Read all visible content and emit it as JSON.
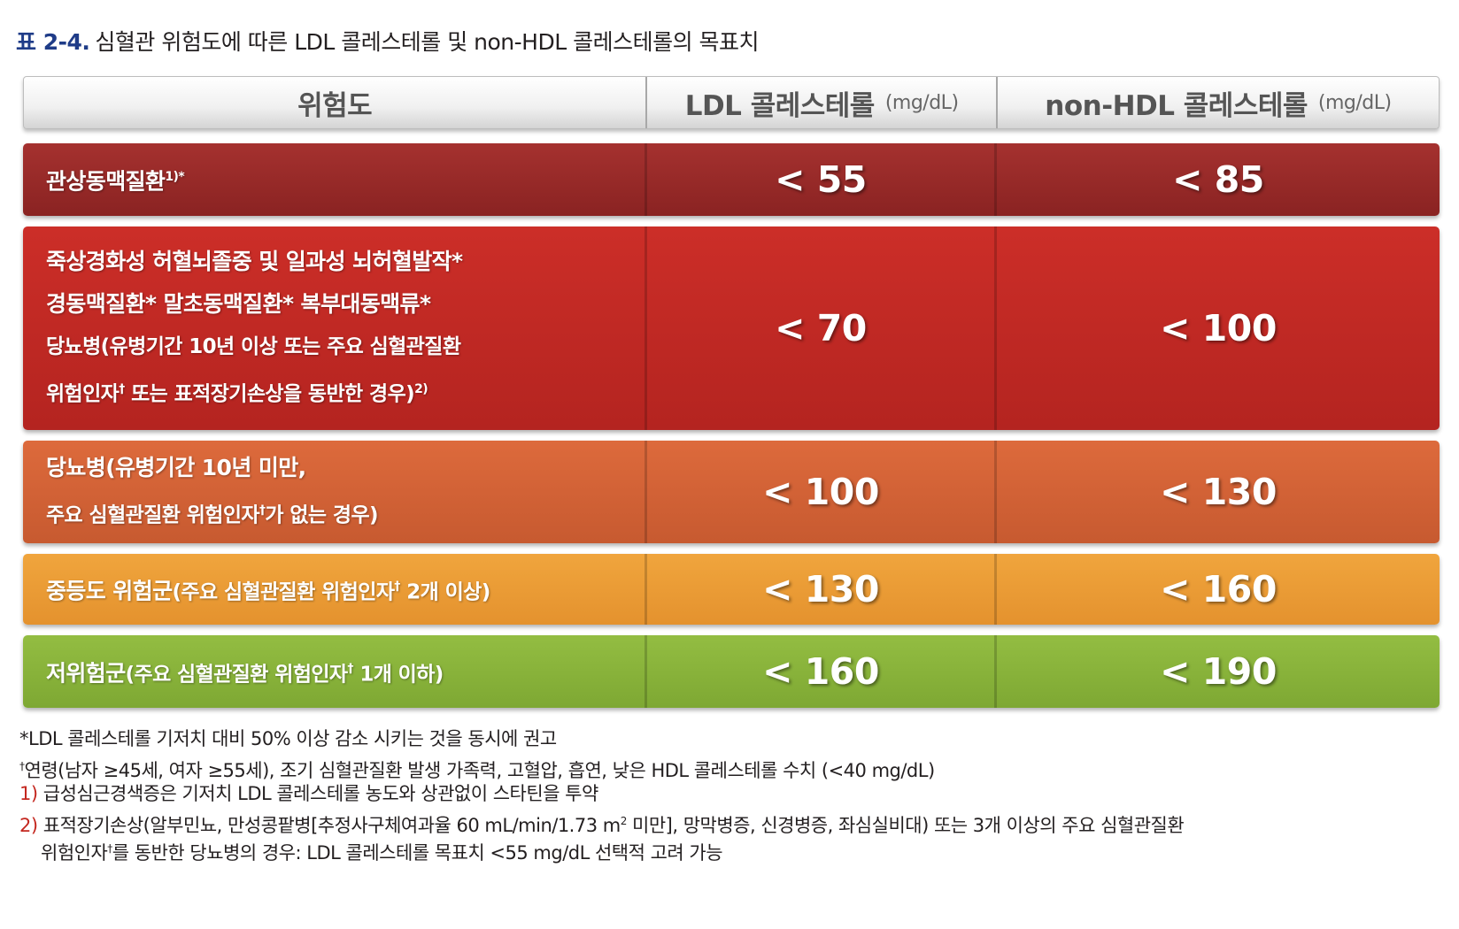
{
  "caption": {
    "number": "표 2-4.",
    "text": "심혈관 위험도에 따른 LDL 콜레스테롤 및 non-HDL 콜레스테롤의 목표치"
  },
  "header": {
    "col1": "위험도",
    "col2": "LDL 콜레스테롤",
    "col2_unit": "(mg/dL)",
    "col3": "non-HDL 콜레스테롤",
    "col3_unit": "(mg/dL)"
  },
  "rows": [
    {
      "lines": [
        "관상동맥질환"
      ],
      "suffix": "1)*",
      "ldl": "< 55",
      "nonhdl": "< 85",
      "color": "#962a28"
    },
    {
      "lines": [
        "죽상경화성 허혈뇌졸중 및 일과성 뇌허혈발작*",
        "경동맥질환*  말초동맥질환*  복부대동맥류*",
        "당뇨병(유병기간 10년 이상 또는 주요 심혈관질환",
        "위험인자",
        "또는 표적장기손상을 동반한 경우)"
      ],
      "dagger": "†",
      "sup": "2)",
      "ldl": "< 70",
      "nonhdl": "< 100",
      "color": "#c02a24"
    },
    {
      "lines": [
        "당뇨병(유병기간 10년 미만,",
        "주요 심혈관질환 위험인자",
        "가 없는 경우)"
      ],
      "dagger": "†",
      "ldl": "< 100",
      "nonhdl": "< 130",
      "color": "#d66336"
    },
    {
      "lines": [
        "중등도 위험군",
        "(주요 심혈관질환 위험인자",
        " 2개 이상)"
      ],
      "dagger": "†",
      "ldl": "< 130",
      "nonhdl": "< 160",
      "color": "#eb9c36"
    },
    {
      "lines": [
        "저위험군",
        "(주요 심혈관질환 위험인자",
        " 1개 이하)"
      ],
      "dagger": "†",
      "ldl": "< 160",
      "nonhdl": "< 190",
      "color": "#88b23a"
    }
  ],
  "notes": {
    "star": "*",
    "n1": "LDL 콜레스테롤 기저치 대비 50% 이상 감소 시키는 것을 동시에 권고",
    "dagger": "†",
    "n2": "연령(남자 ≥45세, 여자 ≥55세), 조기 심혈관질환 발생 가족력, 고혈압, 흡연, 낮은 HDL 콜레스테롤 수치 (<40 mg/dL)",
    "m3": "1)",
    "n3": "급성심근경색증은 기저치 LDL 콜레스테롤 농도와 상관없이 스타틴을 투약",
    "m4": "2)",
    "n4a": "표적장기손상(알부민뇨, 만성콩팥병[추정사구체여과율 60 mL/min/1.73 m",
    "n4sup": "2",
    "n4b": " 미만], 망막병증, 신경병증, 좌심실비대) 또는 3개 이상의 주요 심혈관질환",
    "n5a": "위험인자",
    "n5b": "를 동반한 당뇨병의 경우: LDL 콜레스테롤 목표치 <55 mg/dL 선택적 고려 가능"
  }
}
